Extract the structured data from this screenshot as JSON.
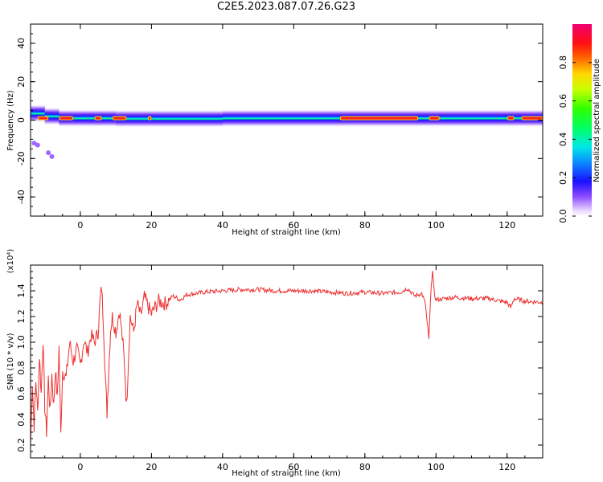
{
  "figure": {
    "title": "C2E5.2023.087.07.26.G23"
  },
  "chart_data": [
    {
      "type": "heatmap",
      "title": "C2E5.2023.087.07.26.G23",
      "xlabel": "Height of straight line (km)",
      "ylabel": "Frequency (Hz)",
      "xlim": [
        -14,
        130
      ],
      "ylim": [
        -50,
        50
      ],
      "xticks": [
        0,
        20,
        40,
        60,
        80,
        100,
        120
      ],
      "yticks": [
        -40,
        -20,
        0,
        20,
        40
      ],
      "colorbar": {
        "label": "Normalized spectral amplitude",
        "range": [
          0,
          1
        ],
        "ticks": [
          0.0,
          0.2,
          0.4,
          0.6,
          0.8
        ]
      },
      "ridge": {
        "description_points": [
          [
            -14,
            4
          ],
          [
            -10,
            3
          ],
          [
            -6,
            1
          ],
          [
            0,
            1
          ],
          [
            10,
            1
          ],
          [
            20,
            0.5
          ],
          [
            40,
            1
          ],
          [
            60,
            1
          ],
          [
            80,
            1
          ],
          [
            100,
            1
          ],
          [
            130,
            1
          ]
        ],
        "peak_segments": [
          [
            -12,
            -9
          ],
          [
            -6,
            -2
          ],
          [
            4,
            6
          ],
          [
            9,
            13
          ],
          [
            19,
            20
          ],
          [
            73,
            95
          ],
          [
            98,
            101
          ],
          [
            120,
            122
          ],
          [
            124,
            130
          ]
        ],
        "outliers": [
          [
            -13,
            -12
          ],
          [
            -12,
            -13
          ],
          [
            -9,
            -17
          ],
          [
            -8,
            -19
          ]
        ]
      }
    },
    {
      "type": "line",
      "xlabel": "Height of straight line (km)",
      "ylabel": "SNR (10 * v/v)",
      "yscale_label": "(x10⁴)",
      "xlim": [
        -14,
        130
      ],
      "ylim": [
        0.1,
        1.6
      ],
      "xticks": [
        0,
        20,
        40,
        60,
        80,
        100,
        120
      ],
      "yticks": [
        0.2,
        0.4,
        0.6,
        0.8,
        1.0,
        1.2,
        1.4
      ],
      "color": "#ee3030",
      "points": [
        [
          -14,
          0.2
        ],
        [
          -13.5,
          0.68
        ],
        [
          -13,
          0.35
        ],
        [
          -12.5,
          0.7
        ],
        [
          -12,
          0.45
        ],
        [
          -11.5,
          0.9
        ],
        [
          -11,
          0.6
        ],
        [
          -10.5,
          1.03
        ],
        [
          -10,
          0.5
        ],
        [
          -9.5,
          0.3
        ],
        [
          -9,
          0.72
        ],
        [
          -8.5,
          0.45
        ],
        [
          -8,
          0.75
        ],
        [
          -7.5,
          0.5
        ],
        [
          -7,
          0.8
        ],
        [
          -6.5,
          0.55
        ],
        [
          -6,
          0.96
        ],
        [
          -5.5,
          0.28
        ],
        [
          -5,
          0.78
        ],
        [
          -4,
          0.72
        ],
        [
          -3,
          1.0
        ],
        [
          -2,
          0.85
        ],
        [
          -1,
          0.95
        ],
        [
          0,
          0.82
        ],
        [
          1,
          1.02
        ],
        [
          2,
          0.92
        ],
        [
          3,
          1.05
        ],
        [
          4,
          1.0
        ],
        [
          5,
          1.08
        ],
        [
          5.5,
          1.3
        ],
        [
          6,
          1.43
        ],
        [
          6.5,
          1.15
        ],
        [
          7,
          0.75
        ],
        [
          7.5,
          0.45
        ],
        [
          8,
          0.8
        ],
        [
          8.5,
          1.1
        ],
        [
          9,
          1.2
        ],
        [
          10,
          1.08
        ],
        [
          11,
          1.25
        ],
        [
          12,
          0.98
        ],
        [
          12.5,
          0.78
        ],
        [
          13,
          0.5
        ],
        [
          13.5,
          0.85
        ],
        [
          14,
          1.2
        ],
        [
          15,
          1.08
        ],
        [
          16,
          1.3
        ],
        [
          17,
          1.2
        ],
        [
          18,
          1.35
        ],
        [
          19,
          1.28
        ],
        [
          20,
          1.22
        ],
        [
          22,
          1.32
        ],
        [
          24,
          1.3
        ],
        [
          26,
          1.36
        ],
        [
          28,
          1.33
        ],
        [
          30,
          1.37
        ],
        [
          35,
          1.39
        ],
        [
          40,
          1.4
        ],
        [
          45,
          1.41
        ],
        [
          50,
          1.41
        ],
        [
          55,
          1.4
        ],
        [
          60,
          1.4
        ],
        [
          65,
          1.4
        ],
        [
          70,
          1.39
        ],
        [
          75,
          1.38
        ],
        [
          80,
          1.39
        ],
        [
          85,
          1.38
        ],
        [
          90,
          1.39
        ],
        [
          92,
          1.42
        ],
        [
          94,
          1.36
        ],
        [
          96,
          1.38
        ],
        [
          97,
          1.3
        ],
        [
          97.5,
          1.15
        ],
        [
          98,
          1.03
        ],
        [
          98.5,
          1.35
        ],
        [
          99,
          1.57
        ],
        [
          99.5,
          1.38
        ],
        [
          100,
          1.33
        ],
        [
          105,
          1.35
        ],
        [
          110,
          1.34
        ],
        [
          115,
          1.34
        ],
        [
          118,
          1.32
        ],
        [
          120,
          1.31
        ],
        [
          121,
          1.27
        ],
        [
          122,
          1.34
        ],
        [
          125,
          1.32
        ],
        [
          130,
          1.31
        ]
      ]
    }
  ]
}
